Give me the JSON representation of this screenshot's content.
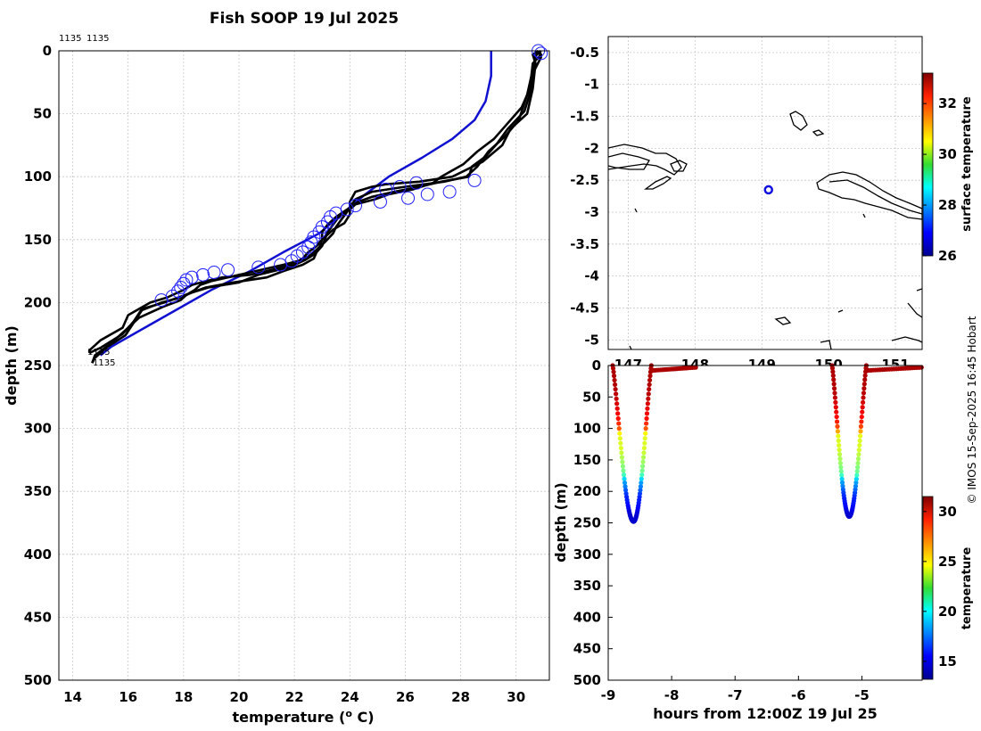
{
  "credit": "© IMOS 15-Sep-2025 16:45 Hobart",
  "colors": {
    "profile": "#000000",
    "climatology": "#1010d0",
    "marker": "#2020ff",
    "grid": "#c8c8c8"
  },
  "chart_data": [
    {
      "id": "profile",
      "type": "line",
      "title": "Fish SOOP 19 Jul 2025",
      "header_labels": [
        "1135",
        "1135"
      ],
      "end_labels": [
        "1135",
        "1135"
      ],
      "xlabel": "temperature (",
      "xlabel_unit_sup": "o",
      "xlabel_unit": " C)",
      "ylabel": "depth (m)",
      "xlim": [
        13.5,
        31.2
      ],
      "ylim": [
        500,
        0
      ],
      "xticks": [
        14,
        16,
        18,
        20,
        22,
        24,
        26,
        28,
        30
      ],
      "yticks": [
        0,
        50,
        100,
        150,
        200,
        250,
        300,
        350,
        400,
        450,
        500
      ],
      "grid": true,
      "series": [
        {
          "name": "cast 1 down",
          "depth": [
            0,
            3,
            10,
            30,
            50,
            62,
            75,
            88,
            100,
            104,
            106,
            108,
            112,
            116,
            120,
            126,
            130,
            137,
            142,
            150,
            155,
            160,
            165,
            170,
            175,
            178,
            180,
            183,
            186,
            190,
            193,
            196,
            200,
            210,
            220,
            230,
            238,
            240
          ],
          "temp": [
            30.8,
            30.6,
            30.7,
            30.6,
            30.4,
            29.8,
            29.5,
            28.8,
            27.7,
            26.5,
            25.3,
            24.8,
            24.2,
            24.1,
            24.0,
            24.0,
            24.0,
            23.8,
            23.4,
            23.0,
            22.8,
            22.5,
            22.3,
            21.9,
            21.0,
            20.4,
            19.4,
            18.8,
            18.3,
            18.0,
            17.7,
            17.4,
            16.8,
            16.0,
            15.8,
            15.0,
            14.6,
            14.6
          ]
        },
        {
          "name": "cast 1 up",
          "depth": [
            240,
            236,
            225,
            215,
            205,
            200,
            196,
            192,
            188,
            184,
            180,
            175,
            170,
            165,
            160,
            155,
            150,
            144,
            138,
            132,
            126,
            122,
            118,
            114,
            110,
            105,
            100,
            90,
            80,
            70,
            60,
            45,
            30,
            10,
            3,
            0
          ],
          "temp": [
            14.6,
            15.0,
            15.8,
            16.2,
            16.5,
            17.3,
            17.8,
            18.3,
            18.8,
            19.8,
            21.0,
            21.6,
            22.3,
            22.7,
            22.8,
            23.0,
            23.1,
            23.2,
            23.4,
            23.6,
            24.0,
            24.2,
            24.9,
            25.4,
            26.3,
            27.0,
            27.3,
            28.1,
            28.6,
            29.2,
            29.6,
            30.2,
            30.5,
            30.6,
            30.9,
            30.8
          ]
        },
        {
          "name": "cast 2 down",
          "depth": [
            0,
            4,
            15,
            35,
            55,
            68,
            80,
            92,
            100,
            104,
            108,
            112,
            118,
            124,
            128,
            134,
            140,
            145,
            152,
            158,
            162,
            166,
            170,
            175,
            180,
            183,
            186,
            190,
            194,
            198,
            203,
            212,
            222,
            232,
            242,
            248
          ],
          "temp": [
            30.9,
            30.7,
            30.6,
            30.4,
            30.1,
            29.6,
            29.0,
            28.6,
            28.2,
            27.4,
            26.0,
            24.8,
            24.2,
            24.0,
            23.9,
            23.7,
            23.5,
            23.4,
            23.1,
            22.8,
            22.6,
            22.3,
            21.6,
            20.6,
            19.6,
            19.0,
            18.6,
            18.4,
            18.1,
            17.9,
            17.3,
            16.4,
            15.9,
            15.4,
            14.8,
            14.7
          ]
        },
        {
          "name": "cast 2 up",
          "depth": [
            248,
            244,
            236,
            226,
            216,
            206,
            200,
            196,
            192,
            188,
            184,
            178,
            172,
            166,
            162,
            156,
            150,
            144,
            138,
            132,
            126,
            120,
            116,
            112,
            108,
            104,
            100,
            92,
            84,
            74,
            62,
            48,
            34,
            18,
            5,
            0
          ],
          "temp": [
            14.7,
            14.8,
            15.2,
            15.9,
            16.2,
            16.5,
            17.2,
            17.9,
            18.3,
            18.9,
            20.0,
            20.7,
            21.8,
            22.4,
            22.7,
            22.9,
            23.0,
            23.0,
            23.2,
            23.5,
            23.9,
            24.3,
            24.8,
            25.6,
            26.5,
            27.3,
            28.3,
            28.4,
            28.9,
            29.3,
            29.7,
            30.3,
            30.5,
            30.6,
            30.9,
            30.8
          ]
        }
      ],
      "climatology": {
        "name": "climatology",
        "depth": [
          0,
          20,
          40,
          55,
          70,
          85,
          100,
          115,
          130,
          145,
          160,
          175,
          190,
          205,
          220,
          235,
          242
        ],
        "temp": [
          29.1,
          29.1,
          28.9,
          28.5,
          27.7,
          26.6,
          25.4,
          24.5,
          23.7,
          22.9,
          21.6,
          20.4,
          19.0,
          17.8,
          16.6,
          15.4,
          15.0
        ]
      },
      "markers": {
        "name": "data points",
        "depth": [
          0,
          2,
          103,
          105,
          108,
          110,
          112,
          114,
          117,
          120,
          123,
          126,
          129,
          132,
          136,
          140,
          144,
          148,
          152,
          156,
          160,
          163,
          167,
          170,
          172,
          174,
          176,
          178,
          180,
          182,
          185,
          188,
          191,
          195,
          198
        ],
        "temp": [
          30.8,
          30.9,
          28.5,
          26.4,
          25.8,
          25.3,
          27.6,
          26.8,
          26.1,
          25.1,
          24.2,
          23.9,
          23.5,
          23.3,
          23.2,
          23.0,
          22.9,
          22.7,
          22.6,
          22.5,
          22.3,
          22.1,
          21.9,
          21.5,
          20.7,
          19.6,
          19.1,
          18.7,
          18.3,
          18.1,
          18.0,
          17.9,
          17.8,
          17.6,
          17.2
        ]
      }
    },
    {
      "id": "map",
      "type": "scatter",
      "xticks": [
        147,
        148,
        149,
        150,
        151
      ],
      "xlim": [
        146.7,
        151.4
      ],
      "ylim": [
        -5.15,
        -0.25
      ],
      "yticks": [
        -0.5,
        -1,
        -1.5,
        -2,
        -2.5,
        -3,
        -3.5,
        -4,
        -4.5,
        -5
      ],
      "yticklabels": [
        "-0.5",
        "-1",
        "-1.5",
        "-2",
        "-2.5",
        "-3",
        "-3.5",
        "-4",
        "-4.5",
        "-5"
      ],
      "grid": true,
      "position": {
        "lon": 149.1,
        "lat": -2.65
      },
      "colorbar": {
        "label": "surface temperature",
        "ticks": [
          26,
          28,
          30,
          32
        ],
        "range": [
          26,
          33.2
        ]
      }
    },
    {
      "id": "time-depth",
      "type": "scatter",
      "xlabel": "hours from 12:00Z 19 Jul 25",
      "ylabel": "depth (m)",
      "xlim": [
        -9,
        -4.05
      ],
      "ylim": [
        500,
        0
      ],
      "xticks": [
        -9,
        -8,
        -7,
        -6,
        -5
      ],
      "yticks": [
        0,
        50,
        100,
        150,
        200,
        250,
        300,
        350,
        400,
        450,
        500
      ],
      "colorbar": {
        "label": "temperature",
        "ticks": [
          15,
          20,
          25,
          30
        ],
        "range": [
          13.2,
          31.5
        ]
      },
      "casts": [
        {
          "x_start": -8.93,
          "x_bottom": -8.6,
          "x_end": -8.32,
          "max_depth": 248,
          "tail_end": -7.62
        },
        {
          "x_start": -5.47,
          "x_bottom": -5.2,
          "x_end": -4.93,
          "max_depth": 240,
          "tail_end": -4.06
        }
      ]
    }
  ]
}
